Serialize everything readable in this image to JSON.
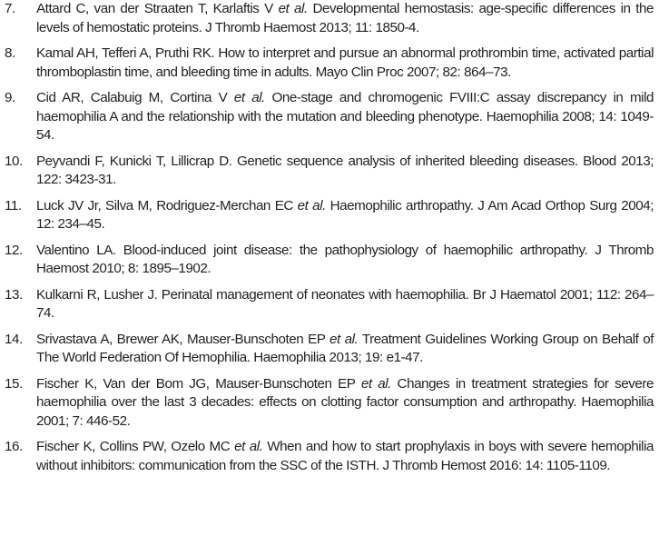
{
  "references": [
    {
      "number": "7.",
      "before": "Attard C, van der Straaten T, Karlaftis V ",
      "etal": "et al.",
      "after": " Developmental hemostasis: age-specific differences in the levels of hemostatic proteins. J Thromb Haemost 2013; 11: 1850-4."
    },
    {
      "number": "8.",
      "before": "Kamal AH, Tefferi A, Pruthi RK. How to interpret and pursue an abnormal prothrombin time, activated partial thromboplastin time, and bleeding time in adults. Mayo Clin Proc 2007; 82: 864–73.",
      "etal": "",
      "after": ""
    },
    {
      "number": "9.",
      "before": "Cid AR, Calabuig M, Cortina V ",
      "etal": "et al.",
      "after": " One-stage and chromogenic FVIII:C assay discrepancy in mild haemophilia A and the relationship with the mutation and bleeding phenotype. Haemophilia 2008; 14: 1049-54."
    },
    {
      "number": "10.",
      "before": "Peyvandi F, Kunicki T, Lillicrap D. Genetic sequence analysis of inherited bleeding diseases. Blood 2013; 122: 3423-31.",
      "etal": "",
      "after": ""
    },
    {
      "number": "11.",
      "before": "Luck JV Jr, Silva M, Rodriguez-Merchan EC ",
      "etal": "et al.",
      "after": " Haemophilic arthropathy. J Am Acad Orthop Surg 2004; 12: 234–45."
    },
    {
      "number": "12.",
      "before": "Valentino LA. Blood-induced joint disease: the pathophysiology of haemophilic arthropathy. J Thromb Haemost 2010; 8: 1895–1902.",
      "etal": "",
      "after": ""
    },
    {
      "number": "13.",
      "before": "Kulkarni R, Lusher J. Perinatal management of neonates with haemophilia. Br J Haematol 2001; 112: 264–74.",
      "etal": "",
      "after": ""
    },
    {
      "number": "14.",
      "before": "Srivastava A, Brewer AK, Mauser-Bunschoten EP ",
      "etal": "et al.",
      "after": " Treatment Guidelines Working Group on Behalf of The World Federation Of Hemophilia. Haemophilia 2013; 19: e1-47."
    },
    {
      "number": "15.",
      "before": "Fischer K, Van der Bom JG, Mauser-Bunschoten EP ",
      "etal": "et al.",
      "after": " Changes in treatment strategies for severe haemophilia over the last 3 decades: effects on clotting factor consumption and arthropathy. Haemophilia 2001; 7: 446-52."
    },
    {
      "number": "16.",
      "before": "Fischer K, Collins PW, Ozelo MC ",
      "etal": "et al.",
      "after": " When and how to start prophylaxis in boys with severe hemophilia without inhibitors: communication from the SSC of the ISTH. J Thromb Hemost 2016: 14: 1105-1109."
    }
  ]
}
